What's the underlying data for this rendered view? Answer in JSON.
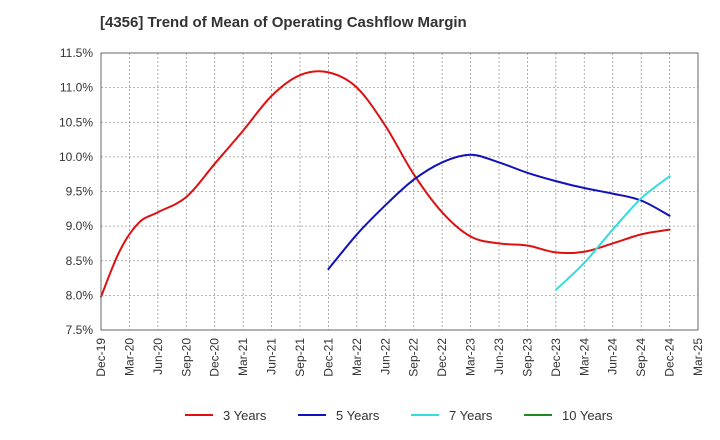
{
  "chart_data": {
    "type": "line",
    "title": "[4356]  Trend of Mean of Operating Cashflow Margin",
    "xlabel": "",
    "ylabel": "",
    "x_ticks": [
      "Dec-19",
      "Mar-20",
      "Jun-20",
      "Sep-20",
      "Dec-20",
      "Mar-21",
      "Jun-21",
      "Sep-21",
      "Dec-21",
      "Mar-22",
      "Jun-22",
      "Sep-22",
      "Dec-22",
      "Mar-23",
      "Jun-23",
      "Sep-23",
      "Dec-23",
      "Mar-24",
      "Jun-24",
      "Sep-24",
      "Dec-24",
      "Mar-25"
    ],
    "y_ticks": [
      "7.5%",
      "8.0%",
      "8.5%",
      "9.0%",
      "9.5%",
      "10.0%",
      "10.5%",
      "11.0%",
      "11.5%"
    ],
    "ylim": [
      7.5,
      11.5
    ],
    "grid": true,
    "legend_position": "bottom",
    "series": [
      {
        "name": "3 Years",
        "color": "#dd1111",
        "points": [
          [
            "Dec-19",
            7.98
          ],
          [
            "Feb-20",
            8.65
          ],
          [
            "Apr-20",
            9.05
          ],
          [
            "Jun-20",
            9.2
          ],
          [
            "Sep-20",
            9.42
          ],
          [
            "Dec-20",
            9.9
          ],
          [
            "Mar-21",
            10.38
          ],
          [
            "Jun-21",
            10.88
          ],
          [
            "Sep-21",
            11.18
          ],
          [
            "Dec-21",
            11.22
          ],
          [
            "Mar-22",
            11.0
          ],
          [
            "Jun-22",
            10.45
          ],
          [
            "Sep-22",
            9.75
          ],
          [
            "Dec-22",
            9.2
          ],
          [
            "Mar-23",
            8.85
          ],
          [
            "Jun-23",
            8.75
          ],
          [
            "Sep-23",
            8.72
          ],
          [
            "Dec-23",
            8.62
          ],
          [
            "Mar-24",
            8.63
          ],
          [
            "Jun-24",
            8.75
          ],
          [
            "Sep-24",
            8.88
          ],
          [
            "Dec-24",
            8.95
          ]
        ]
      },
      {
        "name": "5 Years",
        "color": "#1111bb",
        "points": [
          [
            "Dec-21",
            8.38
          ],
          [
            "Mar-22",
            8.88
          ],
          [
            "Jun-22",
            9.3
          ],
          [
            "Sep-22",
            9.67
          ],
          [
            "Dec-22",
            9.92
          ],
          [
            "Mar-23",
            10.03
          ],
          [
            "Jun-23",
            9.92
          ],
          [
            "Sep-23",
            9.77
          ],
          [
            "Dec-23",
            9.65
          ],
          [
            "Mar-24",
            9.55
          ],
          [
            "Jun-24",
            9.47
          ],
          [
            "Sep-24",
            9.37
          ],
          [
            "Dec-24",
            9.15
          ]
        ]
      },
      {
        "name": "7 Years",
        "color": "#33dddd",
        "points": [
          [
            "Dec-23",
            8.08
          ],
          [
            "Mar-24",
            8.47
          ],
          [
            "Jun-24",
            8.95
          ],
          [
            "Sep-24",
            9.4
          ],
          [
            "Dec-24",
            9.72
          ]
        ]
      },
      {
        "name": "10 Years",
        "color": "#228822",
        "points": []
      }
    ]
  }
}
